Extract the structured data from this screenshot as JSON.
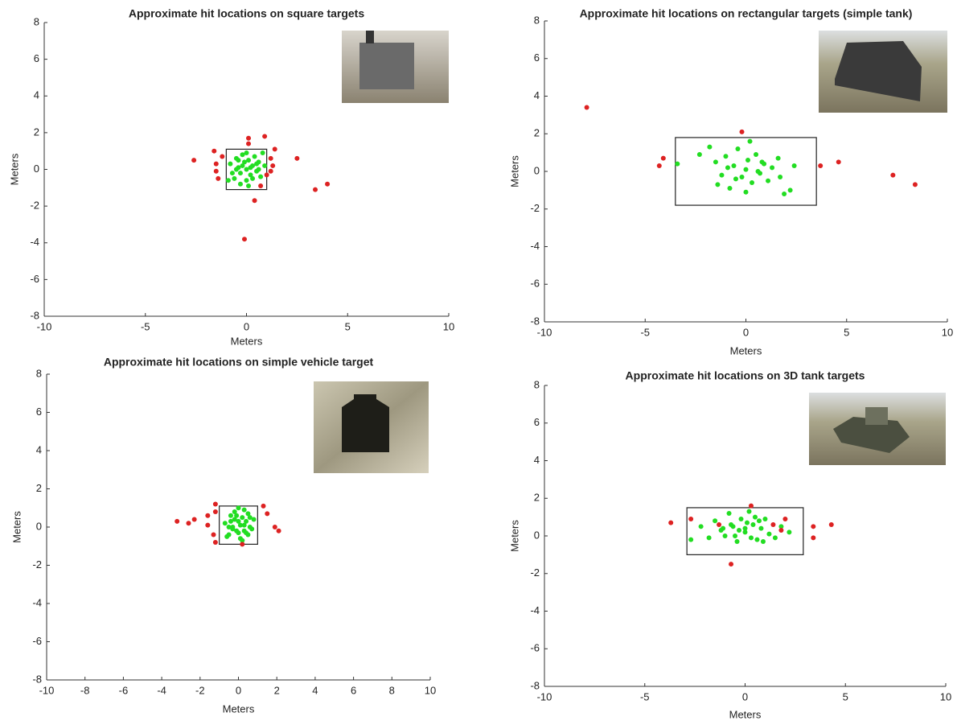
{
  "chart_data": [
    {
      "type": "scatter",
      "title": "Approximate hit locations on square targets",
      "xlabel": "Meters",
      "ylabel": "Meters",
      "xlim": [
        -10,
        10
      ],
      "ylim": [
        -8,
        8
      ],
      "xticks": [
        -10,
        -5,
        0,
        5,
        10
      ],
      "yticks": [
        -8,
        -6,
        -4,
        -2,
        0,
        2,
        4,
        6,
        8
      ],
      "target_box": {
        "x": [
          -1,
          1
        ],
        "y": [
          -1.1,
          1.1
        ]
      },
      "series": [
        {
          "color": "#22dd22",
          "x": [
            -0.8,
            -0.6,
            -0.5,
            -0.4,
            -0.3,
            -0.2,
            -0.1,
            0,
            0,
            0.1,
            0.2,
            0.3,
            0.4,
            0.5,
            0.6,
            0.7,
            0.8,
            -0.7,
            -0.3,
            0.2,
            0.5,
            -0.5,
            0.1,
            -0.2,
            0.3,
            0.0,
            -0.4,
            0.6,
            0.9,
            -0.9
          ],
          "values": [
            0.3,
            -0.5,
            0.6,
            0.1,
            -0.2,
            0.8,
            0.4,
            0.0,
            -0.6,
            0.5,
            -0.3,
            0.2,
            0.7,
            -0.1,
            0.4,
            -0.4,
            0.9,
            -0.2,
            -0.8,
            0.1,
            0.3,
            0.0,
            -0.9,
            0.2,
            -0.5,
            0.9,
            0.5,
            0.0,
            0.2,
            -0.6
          ]
        },
        {
          "color": "#dd2222",
          "x": [
            -2.6,
            -1.6,
            -1.5,
            -1.5,
            -1.4,
            -1.2,
            0.1,
            0.1,
            0.9,
            1.4,
            1.2,
            1.3,
            1.2,
            2.5,
            0.4,
            3.4,
            4.0,
            -0.1,
            0.7,
            1.0
          ],
          "values": [
            0.5,
            1.0,
            0.3,
            -0.1,
            -0.5,
            0.7,
            1.7,
            1.4,
            1.8,
            1.1,
            0.6,
            0.2,
            -0.1,
            0.6,
            -1.7,
            -1.1,
            -0.8,
            -3.8,
            -0.9,
            -0.3
          ]
        }
      ]
    },
    {
      "type": "scatter",
      "title": "Approximate hit locations on rectangular targets (simple tank)",
      "xlabel": "Meters",
      "ylabel": "Meters",
      "xlim": [
        -10,
        10
      ],
      "ylim": [
        -8,
        8
      ],
      "xticks": [
        -10,
        -5,
        0,
        5,
        10
      ],
      "yticks": [
        -8,
        -6,
        -4,
        -2,
        0,
        2,
        4,
        6,
        8
      ],
      "target_box": {
        "x": [
          -3.5,
          3.5
        ],
        "y": [
          -1.8,
          1.8
        ]
      },
      "series": [
        {
          "color": "#22dd22",
          "x": [
            -3.4,
            -2.3,
            -1.8,
            -1.5,
            -1.2,
            -1.0,
            -0.8,
            -0.6,
            -0.4,
            -0.2,
            0,
            0.1,
            0.3,
            0.5,
            0.7,
            0.9,
            1.1,
            1.3,
            1.6,
            1.9,
            2.2,
            2.4,
            -0.5,
            0.2,
            0.6,
            -1.4,
            0.8,
            1.7,
            -0.9,
            0.0
          ],
          "values": [
            0.4,
            0.9,
            1.3,
            0.5,
            -0.2,
            0.8,
            -0.9,
            0.3,
            1.2,
            -0.3,
            0.1,
            0.6,
            -0.6,
            0.9,
            -0.1,
            0.4,
            -0.5,
            0.2,
            0.7,
            -1.2,
            -1.0,
            0.3,
            -0.4,
            1.6,
            0.0,
            -0.7,
            0.5,
            -0.3,
            0.2,
            -1.1
          ]
        },
        {
          "color": "#dd2222",
          "x": [
            -7.9,
            -4.1,
            -4.3,
            -0.2,
            3.7,
            4.6,
            7.3,
            8.4
          ],
          "values": [
            3.4,
            0.7,
            0.3,
            2.1,
            0.3,
            0.5,
            -0.2,
            -0.7
          ]
        }
      ]
    },
    {
      "type": "scatter",
      "title": "Approximate hit locations on simple vehicle target",
      "xlabel": "Meters",
      "ylabel": "Meters",
      "xlim": [
        -10,
        10
      ],
      "ylim": [
        -8,
        8
      ],
      "xticks": [
        -10,
        -8,
        -6,
        -4,
        -2,
        0,
        2,
        4,
        6,
        8,
        10
      ],
      "yticks": [
        -8,
        -6,
        -4,
        -2,
        0,
        2,
        4,
        6,
        8
      ],
      "target_box": {
        "x": [
          -1,
          1
        ],
        "y": [
          -0.9,
          1.1
        ]
      },
      "series": [
        {
          "color": "#22dd22",
          "x": [
            -0.7,
            -0.5,
            -0.4,
            -0.3,
            -0.2,
            -0.1,
            0,
            0.1,
            0.2,
            0.3,
            0.4,
            0.5,
            0.6,
            0.7,
            0.8,
            -0.6,
            -0.2,
            0.3,
            0.0,
            -0.4,
            0.1,
            0.5,
            -0.1,
            0.2,
            0.4,
            -0.3,
            0.6,
            0.0,
            -0.5,
            0.3
          ],
          "values": [
            0.2,
            -0.4,
            0.6,
            0.0,
            0.8,
            -0.2,
            0.3,
            -0.6,
            0.5,
            0.1,
            -0.3,
            0.7,
            0.0,
            -0.1,
            0.4,
            -0.5,
            0.4,
            0.9,
            -0.3,
            0.3,
            0.1,
            -0.4,
            0.6,
            -0.7,
            0.3,
            -0.1,
            0.5,
            1.0,
            0.0,
            -0.2
          ]
        },
        {
          "color": "#dd2222",
          "x": [
            -3.2,
            -2.6,
            -2.3,
            -1.6,
            -1.6,
            -1.2,
            -1.2,
            -1.3,
            -1.2,
            1.3,
            1.5,
            1.9,
            2.1,
            0.2
          ],
          "values": [
            0.3,
            0.2,
            0.4,
            0.6,
            0.1,
            1.2,
            0.8,
            -0.4,
            -0.8,
            1.1,
            0.7,
            0.0,
            -0.2,
            -0.9
          ]
        }
      ]
    },
    {
      "type": "scatter",
      "title": "Approximate hit locations on 3D tank targets",
      "xlabel": "Meters",
      "ylabel": "Meters",
      "xlim": [
        -10,
        10
      ],
      "ylim": [
        -8,
        8
      ],
      "xticks": [
        -10,
        -5,
        0,
        5,
        10
      ],
      "yticks": [
        -8,
        -6,
        -4,
        -2,
        0,
        2,
        4,
        6,
        8
      ],
      "target_box": {
        "x": [
          -2.9,
          2.9
        ],
        "y": [
          -1.0,
          1.5
        ]
      },
      "series": [
        {
          "color": "#22dd22",
          "x": [
            -2.7,
            -2.2,
            -1.8,
            -1.5,
            -1.2,
            -1.0,
            -0.8,
            -0.6,
            -0.4,
            -0.2,
            0,
            0.2,
            0.4,
            0.6,
            0.8,
            1.0,
            1.2,
            1.5,
            1.8,
            2.2,
            -0.5,
            0.1,
            0.5,
            -1.1,
            0.9,
            -0.3,
            0.3,
            0.7,
            -0.7,
            0.0
          ],
          "values": [
            -0.2,
            0.5,
            -0.1,
            0.8,
            0.3,
            0.0,
            1.2,
            0.5,
            -0.3,
            0.9,
            0.2,
            1.3,
            0.6,
            -0.2,
            0.4,
            0.9,
            0.1,
            -0.1,
            0.5,
            0.2,
            0.0,
            0.7,
            1.0,
            0.4,
            -0.3,
            0.3,
            -0.1,
            0.8,
            0.6,
            0.4
          ]
        },
        {
          "color": "#dd2222",
          "x": [
            -3.7,
            -2.7,
            -1.3,
            0.3,
            1.4,
            2.0,
            1.8,
            3.4,
            3.4,
            4.3,
            -0.7
          ],
          "values": [
            0.7,
            0.9,
            0.6,
            1.6,
            0.6,
            0.9,
            0.3,
            0.5,
            -0.1,
            0.6,
            -1.5
          ]
        }
      ]
    }
  ]
}
